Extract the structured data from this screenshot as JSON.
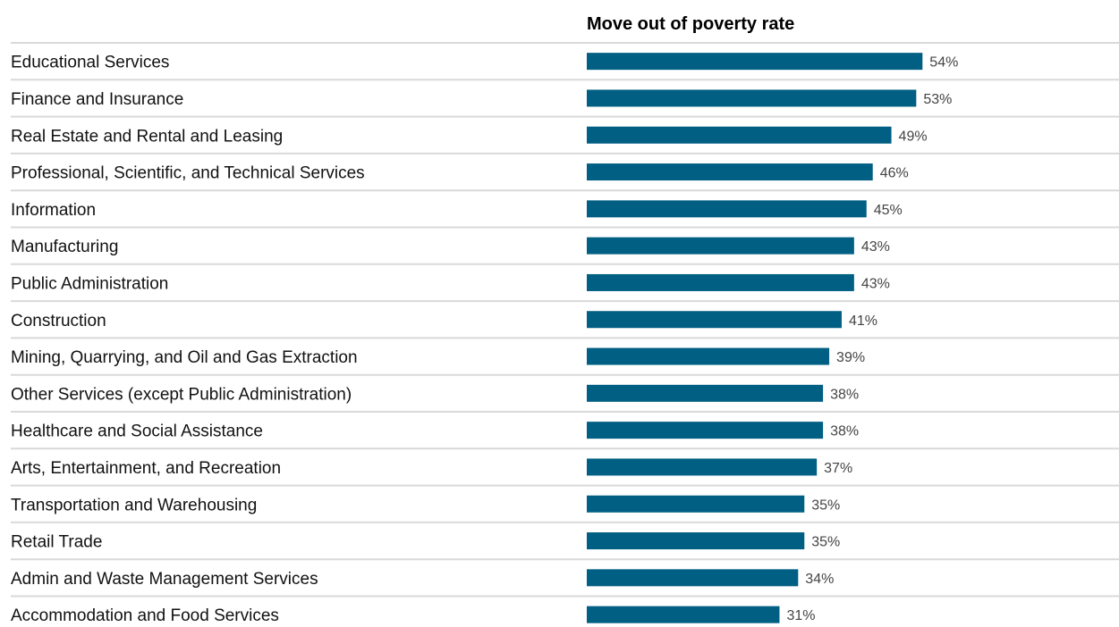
{
  "chart_data": {
    "type": "bar",
    "orientation": "horizontal",
    "title": "Move out of poverty rate",
    "value_suffix": "%",
    "bar_color": "#005f83",
    "xlim": [
      0,
      100
    ],
    "grid": false,
    "categories": [
      "Educational Services",
      "Finance and Insurance",
      "Real Estate and Rental and Leasing",
      "Professional, Scientific, and Technical Services",
      "Information",
      "Manufacturing",
      "Public Administration",
      "Construction",
      "Mining, Quarrying, and Oil and Gas Extraction",
      "Other Services (except Public Administration)",
      "Healthcare and Social Assistance",
      "Arts, Entertainment, and Recreation",
      "Transportation and Warehousing",
      "Retail Trade",
      "Admin and Waste Management Services",
      "Accommodation and Food Services"
    ],
    "values": [
      54,
      53,
      49,
      46,
      45,
      43,
      43,
      41,
      39,
      38,
      38,
      37,
      35,
      35,
      34,
      31
    ]
  }
}
